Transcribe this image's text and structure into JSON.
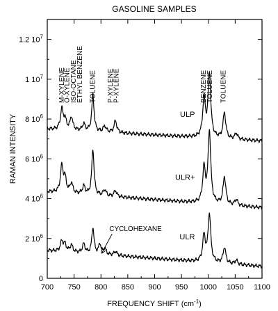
{
  "chart_data": {
    "type": "line",
    "title": "GASOLINE SAMPLES",
    "xlabel": "FREQUENCY SHIFT (cm",
    "xlabel_sup": "-1",
    "xlabel_tail": ")",
    "ylabel": "RAMAN INTENSITY",
    "xlim": [
      700,
      1100
    ],
    "ylim": [
      0,
      13000000
    ],
    "x_ticks": [
      700,
      750,
      800,
      850,
      900,
      950,
      1000,
      1050,
      1100
    ],
    "x_tick_labels": [
      "700",
      "750",
      "800",
      "850",
      "900",
      "950",
      "1000",
      "1050",
      "1100"
    ],
    "y_ticks": [
      {
        "value": 0,
        "mantissa": "0",
        "exp": ""
      },
      {
        "value": 2000000,
        "mantissa": "2 10",
        "exp": "6"
      },
      {
        "value": 4000000,
        "mantissa": "4 10",
        "exp": "6"
      },
      {
        "value": 6000000,
        "mantissa": "6 10",
        "exp": "6"
      },
      {
        "value": 8000000,
        "mantissa": "8 10",
        "exp": "6"
      },
      {
        "value": 10000000,
        "mantissa": "1 10",
        "exp": "7"
      },
      {
        "value": 12000000,
        "mantissa": "1.2 10",
        "exp": "7"
      }
    ],
    "series": [
      {
        "name": "ULP",
        "baseline": [
          [
            700,
            7500000
          ],
          [
            1100,
            6900000
          ]
        ],
        "peaks": [
          {
            "x": 727,
            "h": 1000000,
            "w": 3
          },
          {
            "x": 733,
            "h": 500000,
            "w": 3
          },
          {
            "x": 745,
            "h": 650000,
            "w": 3
          },
          {
            "x": 768,
            "h": 350000,
            "w": 3
          },
          {
            "x": 785,
            "h": 1850000,
            "w": 2.5
          },
          {
            "x": 807,
            "h": 300000,
            "w": 3
          },
          {
            "x": 827,
            "h": 600000,
            "w": 3
          },
          {
            "x": 992,
            "h": 1900000,
            "w": 3
          },
          {
            "x": 1002,
            "h": 3200000,
            "w": 3
          },
          {
            "x": 1030,
            "h": 1300000,
            "w": 3
          },
          {
            "x": 1052,
            "h": 300000,
            "w": 3
          }
        ]
      },
      {
        "name": "ULR+",
        "baseline": [
          [
            700,
            4350000
          ],
          [
            1100,
            3550000
          ]
        ],
        "peaks": [
          {
            "x": 727,
            "h": 1300000,
            "w": 3
          },
          {
            "x": 733,
            "h": 700000,
            "w": 3
          },
          {
            "x": 745,
            "h": 500000,
            "w": 3
          },
          {
            "x": 768,
            "h": 400000,
            "w": 3
          },
          {
            "x": 785,
            "h": 2300000,
            "w": 2.5
          },
          {
            "x": 807,
            "h": 300000,
            "w": 3
          },
          {
            "x": 827,
            "h": 300000,
            "w": 3
          },
          {
            "x": 992,
            "h": 1700000,
            "w": 3
          },
          {
            "x": 1002,
            "h": 3600000,
            "w": 3
          },
          {
            "x": 1030,
            "h": 1400000,
            "w": 3
          },
          {
            "x": 1052,
            "h": 300000,
            "w": 3
          }
        ]
      },
      {
        "name": "ULR",
        "baseline": [
          [
            700,
            1400000
          ],
          [
            1100,
            600000
          ]
        ],
        "peaks": [
          {
            "x": 727,
            "h": 500000,
            "w": 3
          },
          {
            "x": 733,
            "h": 350000,
            "w": 3
          },
          {
            "x": 745,
            "h": 350000,
            "w": 3
          },
          {
            "x": 768,
            "h": 450000,
            "w": 3
          },
          {
            "x": 785,
            "h": 1300000,
            "w": 2.5
          },
          {
            "x": 798,
            "h": 500000,
            "w": 2.5
          },
          {
            "x": 807,
            "h": 300000,
            "w": 3
          },
          {
            "x": 827,
            "h": 200000,
            "w": 3
          },
          {
            "x": 992,
            "h": 1300000,
            "w": 3
          },
          {
            "x": 1002,
            "h": 2400000,
            "w": 3
          },
          {
            "x": 1030,
            "h": 800000,
            "w": 3
          },
          {
            "x": 1052,
            "h": 200000,
            "w": 3
          }
        ]
      }
    ],
    "series_labels": [
      {
        "text": "ULP",
        "x": 975,
        "y": 8100000
      },
      {
        "text": "ULR+",
        "x": 975,
        "y": 4950000
      },
      {
        "text": "ULR",
        "x": 975,
        "y": 1950000
      }
    ],
    "peak_labels": [
      {
        "text": "M-XYLENE",
        "x": 727
      },
      {
        "text": "O-XYLENE",
        "x": 737
      },
      {
        "text": "ISO-OCTANE",
        "x": 749
      },
      {
        "text": "ETHYL BENZENE",
        "x": 761
      },
      {
        "text": "TOLUENE",
        "x": 785
      },
      {
        "text": "P-XYLENE",
        "x": 818
      },
      {
        "text": "P-XYLENE",
        "x": 829
      },
      {
        "text": "BENZENE",
        "x": 991
      },
      {
        "text": "TOLUENE",
        "x": 1003
      },
      {
        "text": "TOLUENE",
        "x": 1028
      }
    ],
    "annotation": {
      "text": "CYCLOHEXANE",
      "x": 800,
      "y": 2300000
    }
  }
}
